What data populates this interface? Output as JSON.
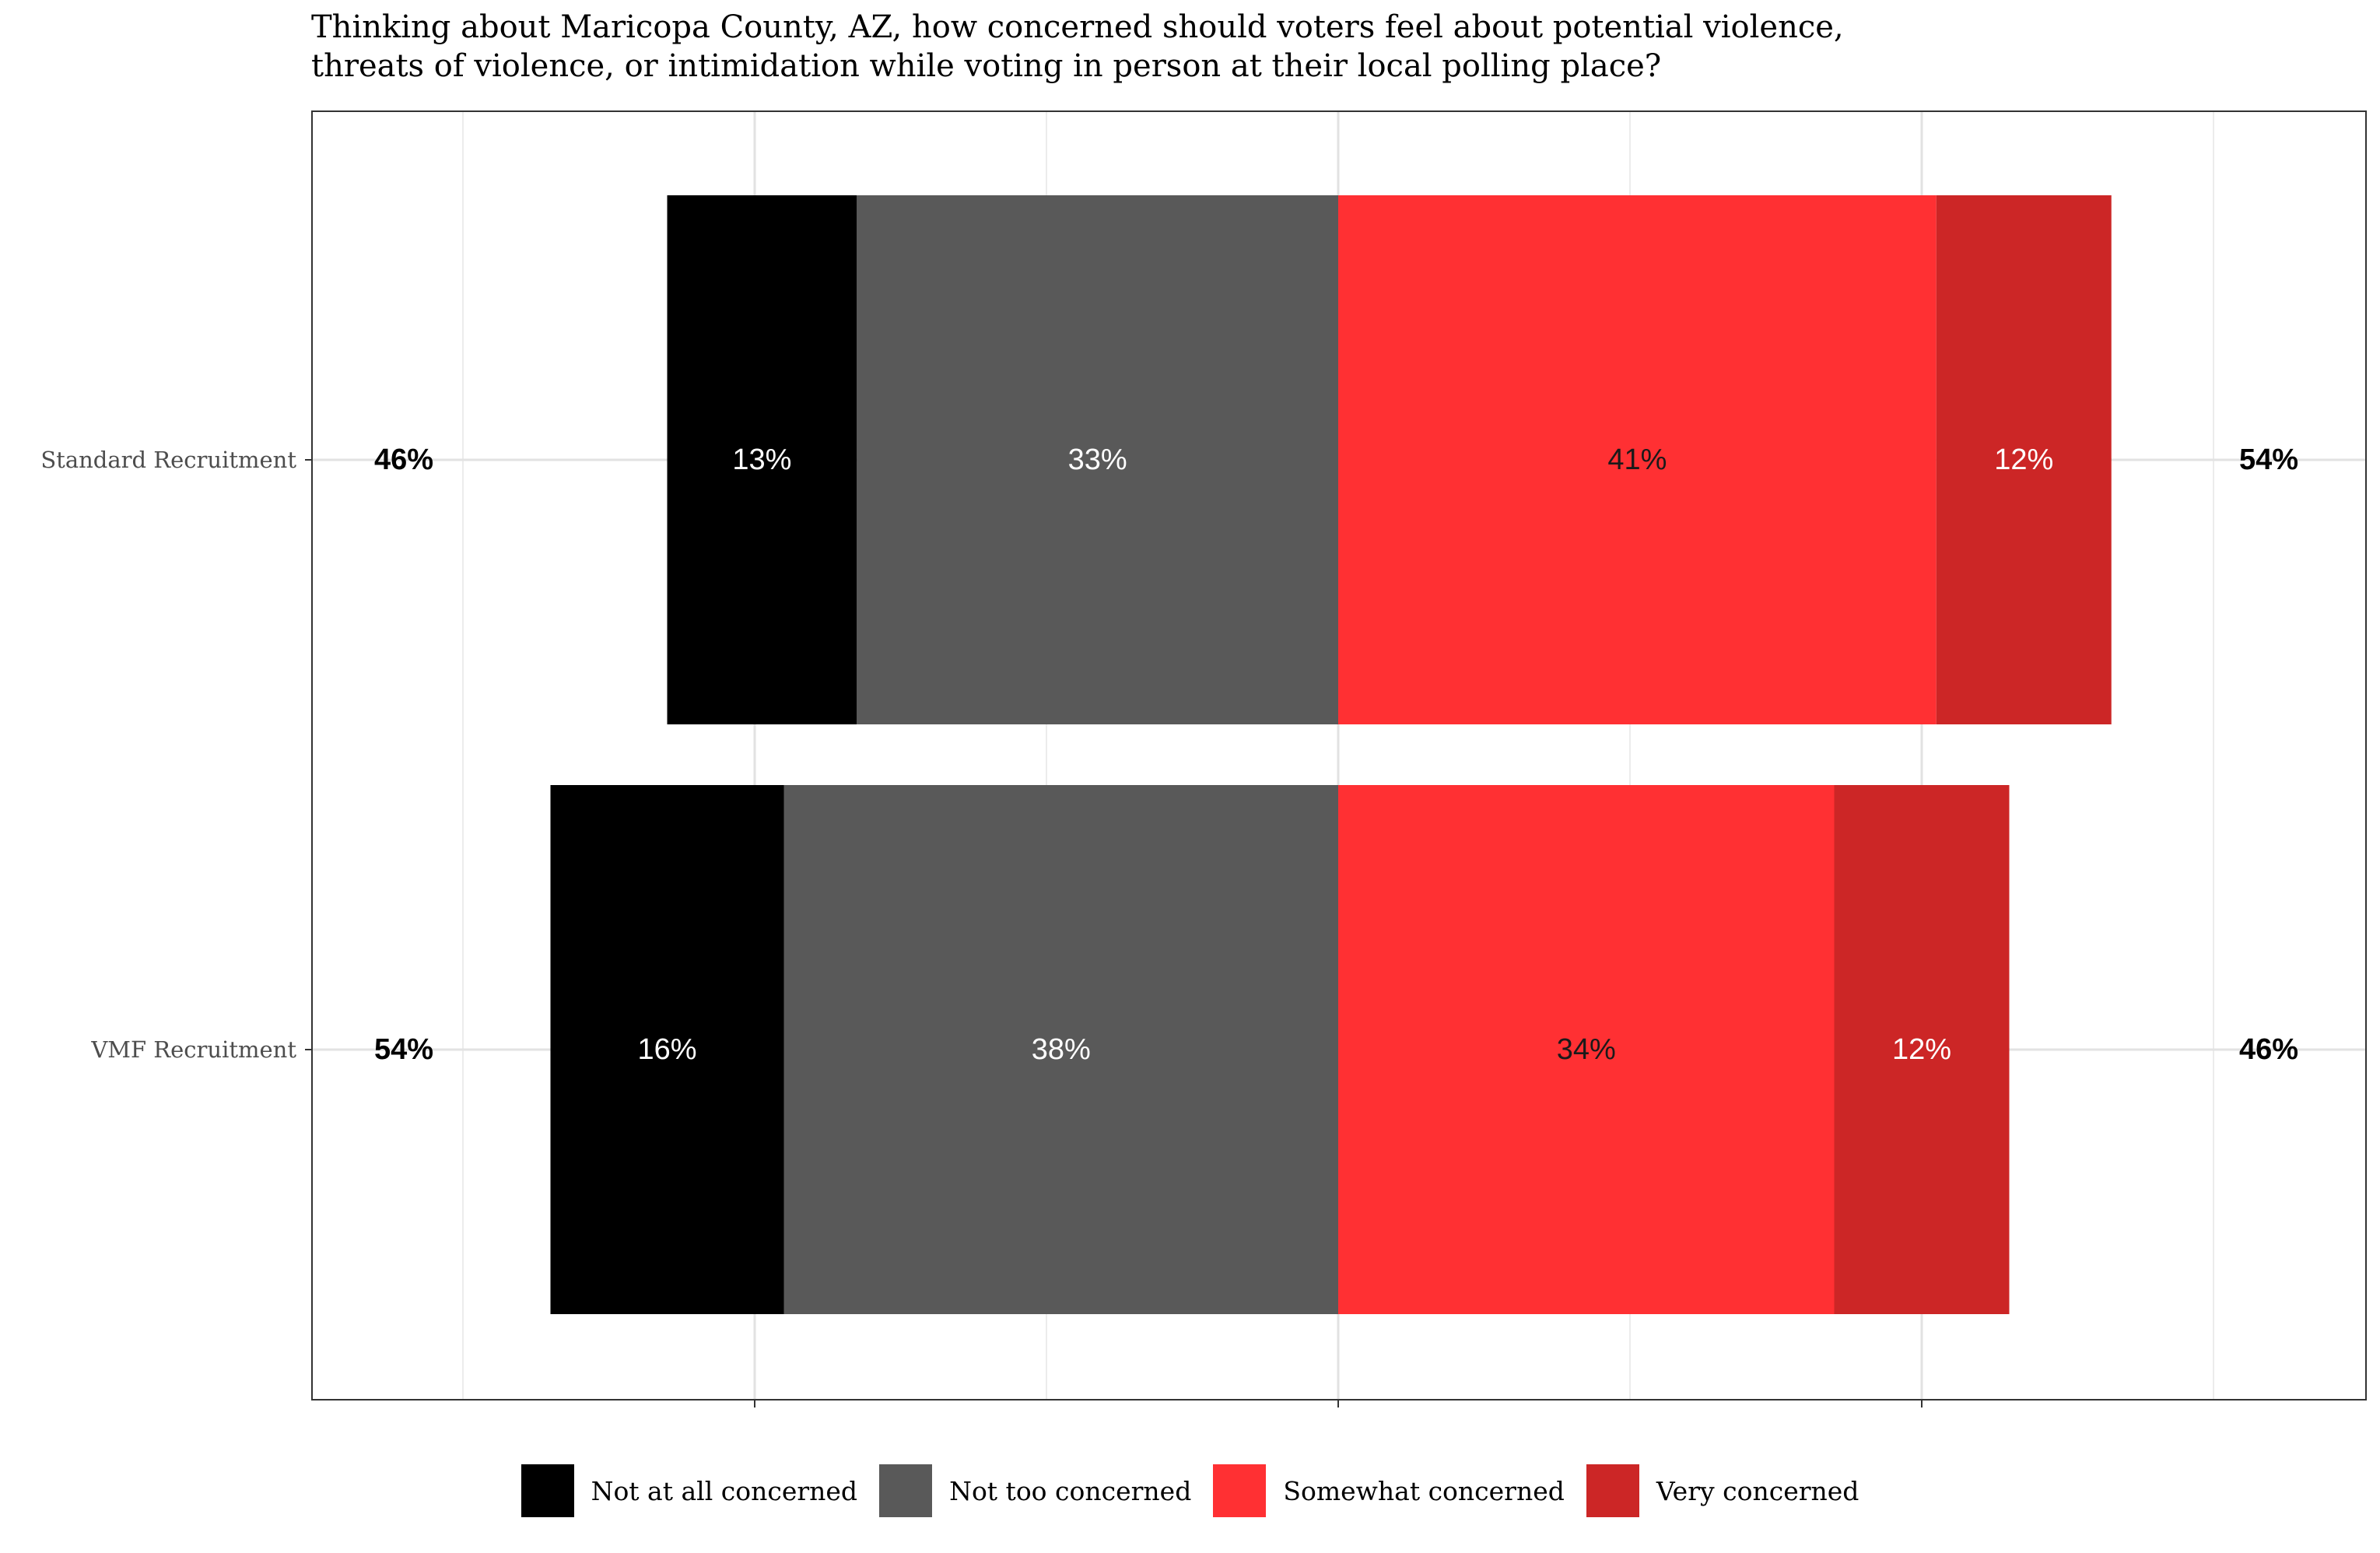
{
  "title_lines": [
    "Thinking about Maricopa County, AZ, how concerned should voters feel about potential violence,",
    "threats of violence, or intimidation while voting in person at their local polling place?"
  ],
  "legend": [
    {
      "label": "Not at all concerned",
      "color": "#000000"
    },
    {
      "label": "Not too concerned",
      "color": "#595959"
    },
    {
      "label": "Somewhat concerned",
      "color": "#ff3033"
    },
    {
      "label": "Very concerned",
      "color": "#cc2626"
    }
  ],
  "chart_data": {
    "type": "bar",
    "orientation": "horizontal-diverging-stacked",
    "title": "Thinking about Maricopa County, AZ, how concerned should voters feel about potential violence, threats of violence, or intimidation while voting in person at their local polling place?",
    "categories": [
      "Standard Recruitment",
      "VMF Recruitment"
    ],
    "series": [
      {
        "name": "Not at all concerned",
        "side": "negative",
        "color": "#000000",
        "label_color": "#ffffff",
        "values": [
          13,
          16
        ],
        "labels": [
          "13%",
          "16%"
        ]
      },
      {
        "name": "Not too concerned",
        "side": "negative",
        "color": "#595959",
        "label_color": "#ffffff",
        "values": [
          33,
          38
        ],
        "labels": [
          "33%",
          "38%"
        ]
      },
      {
        "name": "Somewhat concerned",
        "side": "positive",
        "color": "#ff3033",
        "label_color": "#1a1a1a",
        "values": [
          41,
          34
        ],
        "labels": [
          "41%",
          "34%"
        ]
      },
      {
        "name": "Very concerned",
        "side": "positive",
        "color": "#cc2626",
        "label_color": "#ffffff",
        "values": [
          12,
          12
        ],
        "labels": [
          "12%",
          "12%"
        ]
      }
    ],
    "left_totals": [
      "46%",
      "54%"
    ],
    "right_totals": [
      "54%",
      "46%"
    ],
    "xlim": [
      -70,
      70
    ],
    "x_major_ticks": [
      -40,
      0,
      40
    ],
    "x_minor_grid": [
      -60,
      -20,
      20,
      60
    ],
    "tick_labels_shown": false,
    "grid": true,
    "legend_position": "bottom"
  }
}
